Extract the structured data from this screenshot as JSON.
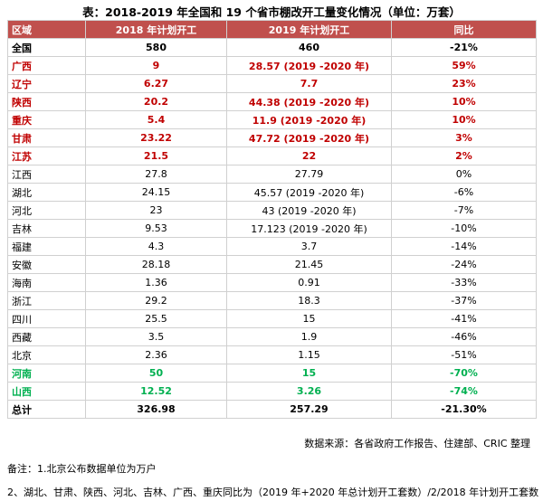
{
  "title": "表：2018-2019 年全国和 19 个省市棚改开工量变化情况（单位：万套）",
  "table": {
    "header": [
      "区域",
      "2018 年计划开工",
      "2019 年计划开工",
      "同比"
    ],
    "header_color": "#c0504d",
    "styles": {
      "total": "#000000",
      "up": "#c00000",
      "plain": "#000000",
      "down": "#00b050"
    },
    "rows": [
      {
        "style": "total",
        "cells": [
          "全国",
          "580",
          "460",
          "-21%"
        ]
      },
      {
        "style": "up",
        "cells": [
          "广西",
          "9",
          "28.57 (2019 -2020 年)",
          "59%"
        ]
      },
      {
        "style": "up",
        "cells": [
          "辽宁",
          "6.27",
          "7.7",
          "23%"
        ]
      },
      {
        "style": "up",
        "cells": [
          "陕西",
          "20.2",
          "44.38 (2019 -2020 年)",
          "10%"
        ]
      },
      {
        "style": "up",
        "cells": [
          "重庆",
          "5.4",
          "11.9 (2019 -2020 年)",
          "10%"
        ]
      },
      {
        "style": "up",
        "cells": [
          "甘肃",
          "23.22",
          "47.72 (2019 -2020 年)",
          "3%"
        ]
      },
      {
        "style": "up",
        "cells": [
          "江苏",
          "21.5",
          "22",
          "2%"
        ]
      },
      {
        "style": "plain",
        "cells": [
          "江西",
          "27.8",
          "27.79",
          "0%"
        ]
      },
      {
        "style": "plain",
        "cells": [
          "湖北",
          "24.15",
          "45.57 (2019 -2020 年)",
          "-6%"
        ]
      },
      {
        "style": "plain",
        "cells": [
          "河北",
          "23",
          "43 (2019 -2020 年)",
          "-7%"
        ]
      },
      {
        "style": "plain",
        "cells": [
          "吉林",
          "9.53",
          "17.123 (2019 -2020 年)",
          "-10%"
        ]
      },
      {
        "style": "plain",
        "cells": [
          "福建",
          "4.3",
          "3.7",
          "-14%"
        ]
      },
      {
        "style": "plain",
        "cells": [
          "安徽",
          "28.18",
          "21.45",
          "-24%"
        ]
      },
      {
        "style": "plain",
        "cells": [
          "海南",
          "1.36",
          "0.91",
          "-33%"
        ]
      },
      {
        "style": "plain",
        "cells": [
          "浙江",
          "29.2",
          "18.3",
          "-37%"
        ]
      },
      {
        "style": "plain",
        "cells": [
          "四川",
          "25.5",
          "15",
          "-41%"
        ]
      },
      {
        "style": "plain",
        "cells": [
          "西藏",
          "3.5",
          "1.9",
          "-46%"
        ]
      },
      {
        "style": "plain",
        "cells": [
          "北京",
          "2.36",
          "1.15",
          "-51%"
        ]
      },
      {
        "style": "down",
        "cells": [
          "河南",
          "50",
          "15",
          "-70%"
        ]
      },
      {
        "style": "down",
        "cells": [
          "山西",
          "12.52",
          "3.26",
          "-74%"
        ]
      },
      {
        "style": "total",
        "cells": [
          "总计",
          "326.98",
          "257.29",
          "-21.30%"
        ]
      }
    ]
  },
  "source": "数据来源：各省政府工作报告、住建部、CRIC 整理",
  "notes": [
    "备注：1.北京公布数据单位为万户",
    "2、湖北、甘肃、陕西、河北、吉林、广西、重庆同比为（2019 年+2020 年总计划开工套数）/2/2018 年计划开工套数"
  ]
}
